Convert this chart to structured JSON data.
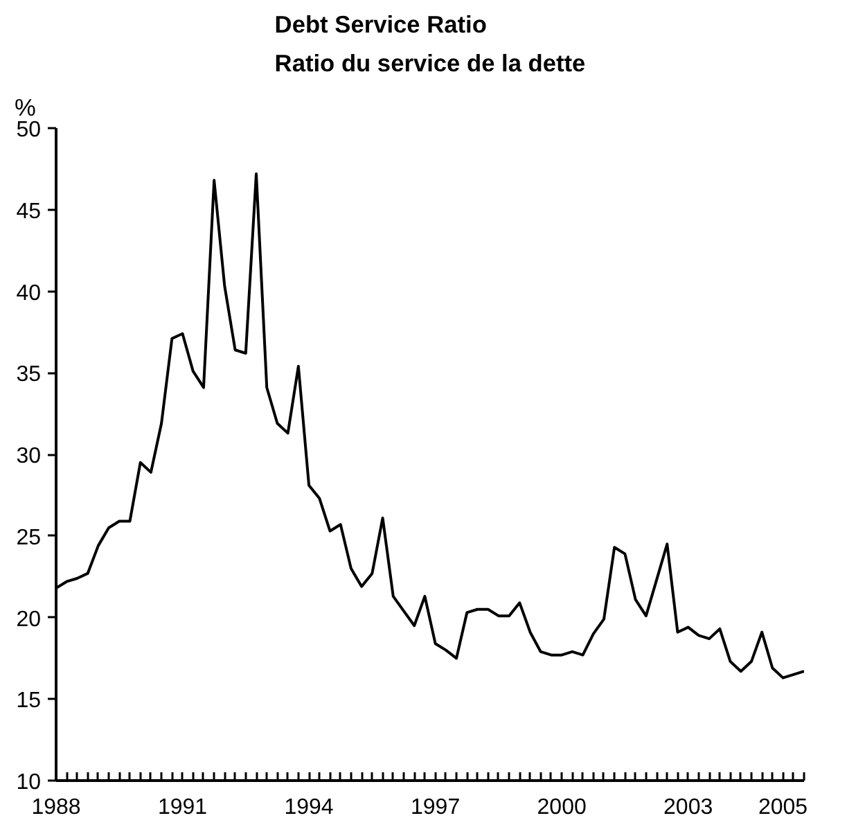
{
  "chart_data": {
    "type": "line",
    "title": "Debt Service Ratio\nRatio du service de la dette",
    "ylabel": "%",
    "categories": [
      "1988",
      null,
      null,
      null,
      null,
      null,
      null,
      null,
      null,
      null,
      null,
      null,
      "1991",
      null,
      null,
      null,
      null,
      null,
      null,
      null,
      null,
      null,
      null,
      null,
      "1994",
      null,
      null,
      null,
      null,
      null,
      null,
      null,
      null,
      null,
      null,
      null,
      "1997",
      null,
      null,
      null,
      null,
      null,
      null,
      null,
      null,
      null,
      null,
      null,
      "2000",
      null,
      null,
      null,
      null,
      null,
      null,
      null,
      null,
      null,
      null,
      null,
      "2003",
      null,
      null,
      null,
      null,
      null,
      null,
      null,
      null,
      "2005",
      null,
      null
    ],
    "series": [
      {
        "color": "#000000",
        "values": [
          21.8,
          22.2,
          22.4,
          22.7,
          24.4,
          25.5,
          25.9,
          25.9,
          29.5,
          28.9,
          31.9,
          37.1,
          37.4,
          35.1,
          34.1,
          46.8,
          40.3,
          36.4,
          36.2,
          47.2,
          34.1,
          31.9,
          31.3,
          35.4,
          28.1,
          27.3,
          25.3,
          25.7,
          23.0,
          21.9,
          22.7,
          26.1,
          21.3,
          20.4,
          19.5,
          21.3,
          18.4,
          18.0,
          17.5,
          20.3,
          20.5,
          20.5,
          20.1,
          20.1,
          20.9,
          19.1,
          17.9,
          17.7,
          17.7,
          17.9,
          17.7,
          19.0,
          19.9,
          24.3,
          23.9,
          21.1,
          20.1,
          22.3,
          24.5,
          19.1,
          19.4,
          18.9,
          18.7,
          19.3,
          17.3,
          16.7,
          17.3,
          19.1,
          16.9,
          16.3,
          16.5,
          16.7
        ]
      }
    ],
    "ylim": [
      10,
      50
    ],
    "yticks": [
      10,
      15,
      20,
      25,
      30,
      35,
      40,
      45,
      50
    ],
    "grid": false,
    "marker": "none",
    "line_style": "solid"
  }
}
